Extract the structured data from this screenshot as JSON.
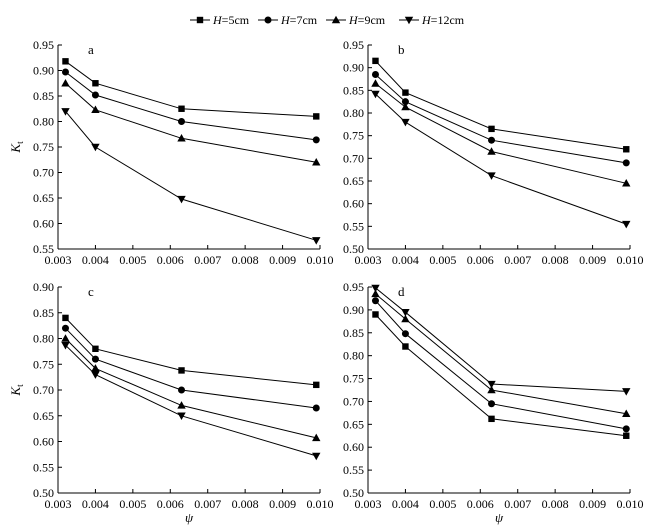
{
  "legend": [
    {
      "prefix": "H",
      "suffix": "=5cm",
      "marker": "square"
    },
    {
      "prefix": "H",
      "suffix": "=7cm",
      "marker": "circle"
    },
    {
      "prefix": "H",
      "suffix": "=9cm",
      "marker": "triangle-up"
    },
    {
      "prefix": "H",
      "suffix": "=12cm",
      "marker": "triangle-down"
    }
  ],
  "chart_data": [
    {
      "type": "line",
      "panel_label": "a",
      "ylabel": {
        "main": "K",
        "sub": "t"
      },
      "xlabel": "",
      "xlim": [
        0.003,
        0.01
      ],
      "ylim": [
        0.55,
        0.95
      ],
      "xticks": [
        "0.003",
        "0.004",
        "0.005",
        "0.006",
        "0.007",
        "0.008",
        "0.009",
        "0.010"
      ],
      "yticks": [
        "0.55",
        "0.60",
        "0.65",
        "0.70",
        "0.75",
        "0.80",
        "0.85",
        "0.90",
        "0.95"
      ],
      "x": [
        0.0032,
        0.004,
        0.0063,
        0.0099
      ],
      "series": [
        {
          "marker": "square",
          "values": [
            0.918,
            0.875,
            0.825,
            0.81
          ]
        },
        {
          "marker": "circle",
          "values": [
            0.897,
            0.852,
            0.8,
            0.764
          ]
        },
        {
          "marker": "triangle-up",
          "values": [
            0.875,
            0.823,
            0.767,
            0.72
          ]
        },
        {
          "marker": "triangle-down",
          "values": [
            0.82,
            0.75,
            0.648,
            0.567
          ]
        }
      ]
    },
    {
      "type": "line",
      "panel_label": "b",
      "ylabel": {
        "main": "",
        "sub": ""
      },
      "xlabel": "",
      "xlim": [
        0.003,
        0.01
      ],
      "ylim": [
        0.5,
        0.95
      ],
      "xticks": [
        "0.003",
        "0.004",
        "0.005",
        "0.006",
        "0.007",
        "0.008",
        "0.009",
        "0.010"
      ],
      "yticks": [
        "0.50",
        "0.55",
        "0.60",
        "0.65",
        "0.70",
        "0.75",
        "0.80",
        "0.85",
        "0.90",
        "0.95"
      ],
      "x": [
        0.0032,
        0.004,
        0.0063,
        0.0099
      ],
      "series": [
        {
          "marker": "square",
          "values": [
            0.915,
            0.845,
            0.765,
            0.72
          ]
        },
        {
          "marker": "circle",
          "values": [
            0.885,
            0.825,
            0.74,
            0.69
          ]
        },
        {
          "marker": "triangle-up",
          "values": [
            0.865,
            0.813,
            0.715,
            0.645
          ]
        },
        {
          "marker": "triangle-down",
          "values": [
            0.842,
            0.78,
            0.662,
            0.555
          ]
        }
      ]
    },
    {
      "type": "line",
      "panel_label": "c",
      "ylabel": {
        "main": "K",
        "sub": "t"
      },
      "xlabel": "ψ",
      "xlim": [
        0.003,
        0.01
      ],
      "ylim": [
        0.5,
        0.9
      ],
      "xticks": [
        "0.003",
        "0.004",
        "0.005",
        "0.006",
        "0.007",
        "0.008",
        "0.009",
        "0.010"
      ],
      "yticks": [
        "0.50",
        "0.55",
        "0.60",
        "0.65",
        "0.70",
        "0.75",
        "0.80",
        "0.85",
        "0.90"
      ],
      "x": [
        0.0032,
        0.004,
        0.0063,
        0.0099
      ],
      "series": [
        {
          "marker": "square",
          "values": [
            0.84,
            0.78,
            0.738,
            0.71
          ]
        },
        {
          "marker": "circle",
          "values": [
            0.82,
            0.76,
            0.7,
            0.665
          ]
        },
        {
          "marker": "triangle-up",
          "values": [
            0.8,
            0.742,
            0.67,
            0.607
          ]
        },
        {
          "marker": "triangle-down",
          "values": [
            0.787,
            0.73,
            0.65,
            0.572
          ]
        }
      ]
    },
    {
      "type": "line",
      "panel_label": "d",
      "ylabel": {
        "main": "",
        "sub": ""
      },
      "xlabel": "ψ",
      "xlim": [
        0.003,
        0.01
      ],
      "ylim": [
        0.5,
        0.95
      ],
      "xticks": [
        "0.003",
        "0.004",
        "0.005",
        "0.006",
        "0.007",
        "0.008",
        "0.009",
        "0.010"
      ],
      "yticks": [
        "0.50",
        "0.55",
        "0.60",
        "0.65",
        "0.70",
        "0.75",
        "0.80",
        "0.85",
        "0.90",
        "0.95"
      ],
      "x": [
        0.0032,
        0.004,
        0.0063,
        0.0099
      ],
      "series": [
        {
          "marker": "square",
          "values": [
            0.89,
            0.82,
            0.662,
            0.625
          ]
        },
        {
          "marker": "circle",
          "values": [
            0.92,
            0.848,
            0.695,
            0.64
          ]
        },
        {
          "marker": "triangle-up",
          "values": [
            0.935,
            0.88,
            0.725,
            0.673
          ]
        },
        {
          "marker": "triangle-down",
          "values": [
            0.948,
            0.895,
            0.738,
            0.722
          ]
        }
      ]
    }
  ]
}
